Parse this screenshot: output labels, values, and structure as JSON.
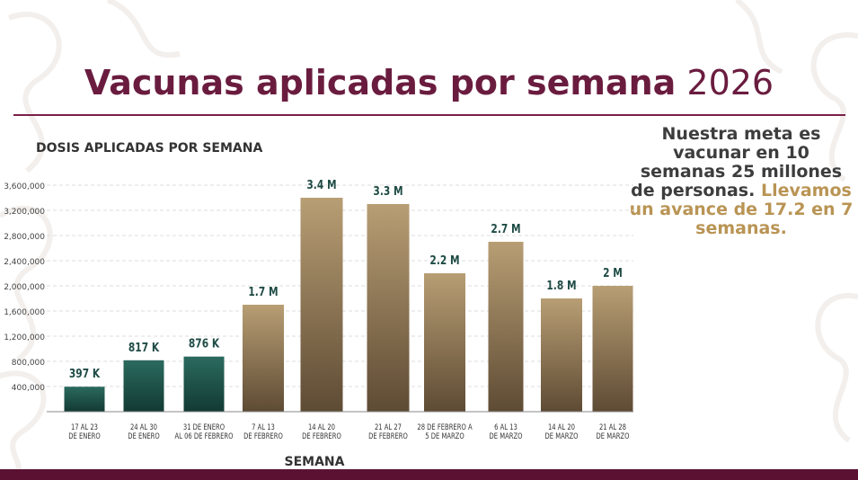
{
  "header": {
    "title_bold": "Vacunas aplicadas por semana",
    "title_year": "2026"
  },
  "note": {
    "part1": "Nuestra meta es vacunar en 10 semanas 25 millones de personas.",
    "part2": "Llevamos un avance de 17.2 en 7 semanas."
  },
  "colors": {
    "title": "#6a1c3f",
    "green_bar_top": "#2b6a5e",
    "green_bar_bottom": "#123a33",
    "gold_bar_top": "#b89e74",
    "gold_bar_bottom": "#5e4b34",
    "label_green": "#1f4b45",
    "accent_gold": "#b99454",
    "footer": "#5b1232"
  },
  "chart_data": {
    "type": "bar",
    "title": "DOSIS APLICADAS POR SEMANA",
    "xlabel": "SEMANA",
    "ylabel": "",
    "ylim": [
      0,
      3800000
    ],
    "yticks": [
      400000,
      800000,
      1200000,
      1600000,
      2000000,
      2400000,
      2800000,
      3200000,
      3600000
    ],
    "ytick_labels": [
      "400,000",
      "800,000",
      "1,200,000",
      "1,600,000",
      "2,000,000",
      "2,400,000",
      "2,800,000",
      "3,200,000",
      "3,600,000"
    ],
    "grid": true,
    "categories": [
      [
        "17 AL 23",
        "DE ENERO"
      ],
      [
        "24 AL 30",
        "DE ENERO"
      ],
      [
        "31 DE ENERO",
        "AL 06 DE FEBRERO"
      ],
      [
        "7 AL 13",
        "DE FEBRERO"
      ],
      [
        "14 AL 20",
        "DE FEBRERO"
      ],
      [
        "21  AL 27",
        "DE FEBRERO"
      ],
      [
        "28 DE FEBRERO A",
        "5 DE MARZO"
      ],
      [
        "6  AL 13",
        "DE MARZO"
      ],
      [
        "14  AL 20",
        "DE MARZO"
      ],
      [
        "21  AL 28",
        "DE MARZO"
      ]
    ],
    "values": [
      397000,
      817000,
      876000,
      1700000,
      3400000,
      3300000,
      2200000,
      2700000,
      1800000,
      2000000
    ],
    "data_labels": [
      "397 K",
      "817 K",
      "876 K",
      "1.7 M",
      "3.4 M",
      "3.3 M",
      "2.2 M",
      "2.7 M",
      "1.8 M",
      "2 M"
    ],
    "bar_colors": [
      "green",
      "green",
      "green",
      "gold",
      "gold",
      "gold",
      "gold",
      "gold",
      "gold",
      "gold"
    ]
  }
}
